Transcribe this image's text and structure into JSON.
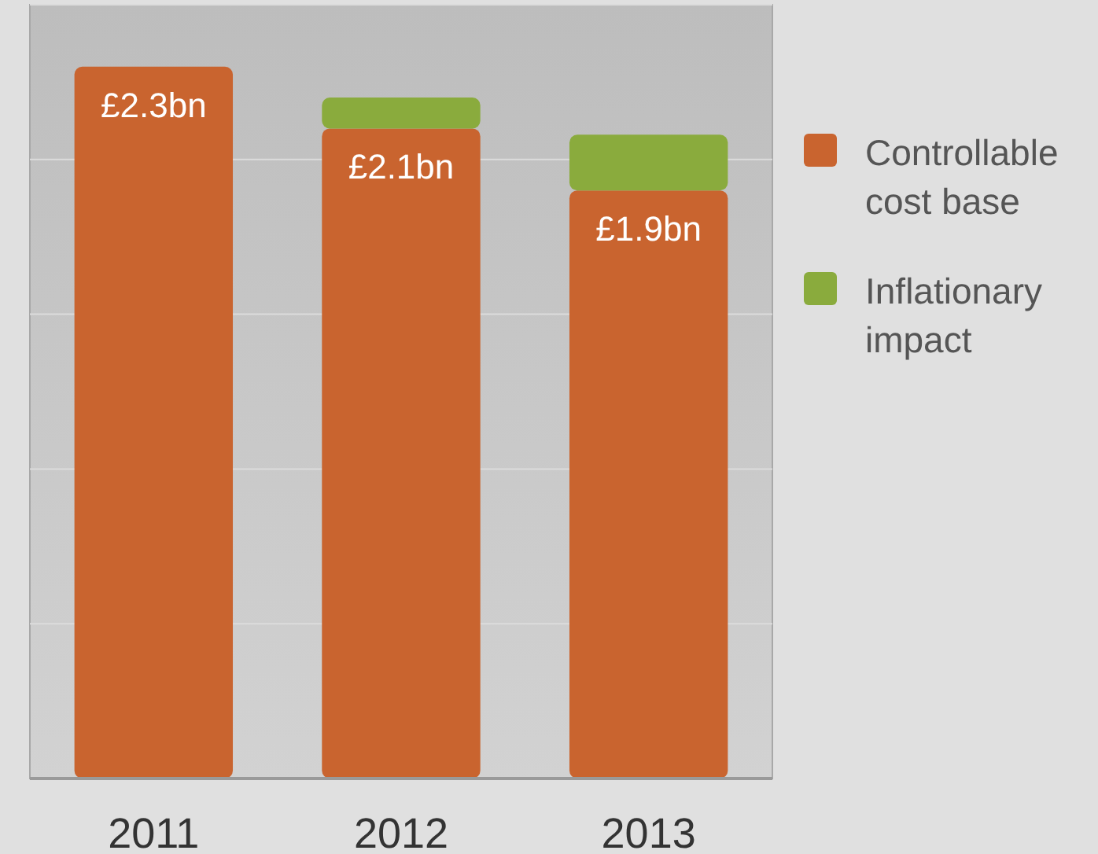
{
  "chart_data": {
    "type": "bar",
    "stacked": true,
    "categories": [
      "2011",
      "2012",
      "2013"
    ],
    "series": [
      {
        "name": "Controllable cost base",
        "color": "#c9642f",
        "values": [
          2.3,
          2.1,
          1.9
        ],
        "value_labels": [
          "£2.3bn",
          "£2.1bn",
          "£1.9bn"
        ]
      },
      {
        "name": "Inflationary impact",
        "color": "#8aab3d",
        "values": [
          0,
          0.1,
          0.18
        ]
      }
    ],
    "ylim": [
      0,
      2.5
    ],
    "yticks": [
      {
        "value": 0,
        "label": null
      },
      {
        "value": 0.5,
        "label": null
      },
      {
        "value": 1,
        "label": null
      },
      {
        "value": 1.5,
        "label": null
      },
      {
        "value": 2,
        "label": null
      },
      {
        "value": 2.5,
        "label": null
      }
    ],
    "tick_labels": "x",
    "grid": "y",
    "legend": "right"
  }
}
